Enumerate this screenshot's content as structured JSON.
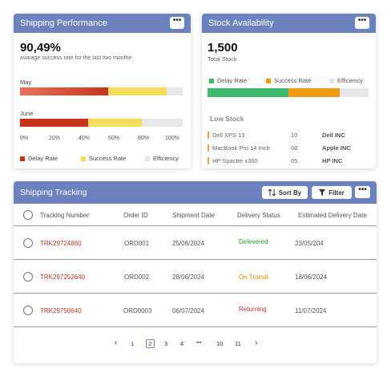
{
  "shipping_performance": {
    "title": "Shipping Performance",
    "rate": "90,49%",
    "subtitle": "avarage success rate for the last two monthe",
    "months": [
      {
        "label": "May",
        "delay": 0.54,
        "success": 0.36
      },
      {
        "label": "June",
        "delay": 0.42,
        "success": 0.33
      }
    ],
    "ticks": [
      "0%",
      "20%",
      "40%",
      "60%",
      "80%",
      "100%"
    ],
    "legend": {
      "delay": "Delay Rate",
      "success": "Success Rate",
      "efficiency": "Efficiency"
    },
    "colors": {
      "delay": "#c8331c",
      "success": "#f3dd5a",
      "efficiency": "#e6e6e6"
    }
  },
  "stock_availability": {
    "title": "Stock Availability",
    "total": "1,500",
    "total_label": "Total Stock",
    "legend": {
      "delay": "Delay Rate",
      "success": "Success Rate",
      "efficiency": "Efficiency"
    },
    "bar": {
      "delay": 0.5,
      "success": 0.32
    },
    "colors": {
      "delay": "#3cb96a",
      "success": "#f09a10",
      "efficiency": "#e6e6e6"
    },
    "low_stock_title": "Low Stock",
    "low_stock": [
      {
        "name": "Dell XPS  13",
        "qty": "10",
        "brand": "Dell INC"
      },
      {
        "name": "MacBook  Pro 14 Inch",
        "qty": "08",
        "brand": "Apple INC"
      },
      {
        "name": "HP Spactre x360",
        "qty": "05",
        "brand": "HP INC"
      }
    ]
  },
  "shipping_tracking": {
    "title": "Shipping Tracking",
    "sort_label": "Sort By",
    "filter_label": "Filter",
    "columns": {
      "tracking": "Tracking Number",
      "order": "Order ID",
      "shipment": "Shipment Date",
      "status": "Delivery Status",
      "estimated": "Estimated Delivery Date"
    },
    "rows": [
      {
        "tracking": "TRK29724860",
        "order": "ORD001",
        "shipment": "25/06/2024",
        "status": "Delevered",
        "estimated": "23/05/204"
      },
      {
        "tracking": "TRK297252640",
        "order": "ORD002",
        "shipment": "28/06/2024",
        "status": "On Transit",
        "estimated": "18/06/2024"
      },
      {
        "tracking": "TRK29758640",
        "order": "ORD0003",
        "shipment": "06/07/2024",
        "status": "Returning",
        "estimated": "11/07/2024"
      }
    ],
    "pagination": {
      "prev": "‹",
      "pages": [
        "1",
        "2",
        "3",
        "4",
        "•••",
        "10",
        "11"
      ],
      "current": "2",
      "next": "›"
    }
  }
}
